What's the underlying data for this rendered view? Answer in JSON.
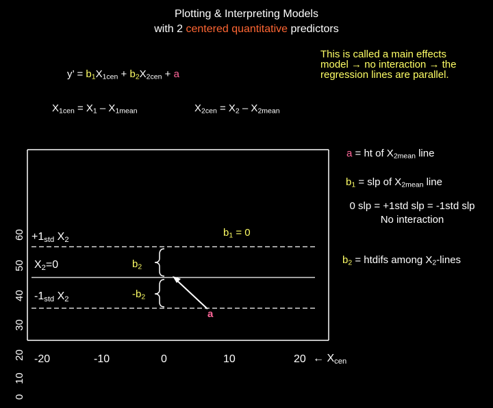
{
  "title": {
    "line1": "Plotting & Interpreting Models",
    "line2_pre": "with 2 ",
    "line2_hl": "centered quantitative",
    "line2_post": " predictors"
  },
  "note": {
    "line1": "This is called a main effects",
    "line2_pre": "model ",
    "line2_mid": " no interaction ",
    "line2_post": " the",
    "line3": "regression lines are parallel.",
    "arrow": "→"
  },
  "equation": {
    "lhs": "y’ = ",
    "b1": "b",
    "b1_sub": "1",
    "x1": "X",
    "x1_sub": "1cen",
    "plus1": " + ",
    "b2": "b",
    "b2_sub": "2",
    "x2": "X",
    "x2_sub": "2cen",
    "plus2": " + ",
    "a": "a"
  },
  "def1": {
    "x": "X",
    "sub_cen": "1cen",
    "eq": " = X",
    "sub1": "1",
    "minus": " – X",
    "sub_mean": "1mean"
  },
  "def2": {
    "x": "X",
    "sub_cen": "2cen",
    "eq": " = X",
    "sub1": "2",
    "minus": " – X",
    "sub_mean": "2mean"
  },
  "y_axis": {
    "ticks": [
      "0",
      "10",
      "20",
      "30",
      "40",
      "50",
      "60"
    ]
  },
  "x_axis": {
    "ticks": [
      "-20",
      "-10",
      "0",
      "10",
      "20"
    ],
    "arrow": "←",
    "label": "X",
    "label_sub": "cen"
  },
  "lines": {
    "plus": {
      "pre": "+1",
      "sub": "std",
      "post": " X",
      "post_sub": "2"
    },
    "mean": {
      "pre": "X",
      "sub": "2",
      "post": "=0"
    },
    "minus": {
      "pre": "-1",
      "sub": "std",
      "post": " X",
      "post_sub": "2"
    }
  },
  "brace_labels": {
    "b2": "b",
    "b2_sub": "2",
    "neg_b2": "-b",
    "neg_b2_sub": "2"
  },
  "a_label": "a",
  "b1_zero": {
    "b": "b",
    "sub": "1",
    "eq": " = 0"
  },
  "right_notes": {
    "a_def": {
      "a": "a",
      "text": " = ht of X",
      "sub": "2mean",
      "post": " line"
    },
    "b1_def": {
      "b": "b",
      "sub": "1",
      "text": " = slp of X",
      "sub2": "2mean",
      "post": " line"
    },
    "slp_line1": "0 slp = +1std slp = -1std slp",
    "slp_line2": "No interaction",
    "b2_def": {
      "b": "b",
      "sub": "2",
      "text": " = htdifs among X",
      "sub2": "2",
      "post": "-lines"
    }
  },
  "colors": {
    "yellow": "#ffff66",
    "orange": "#ff6633",
    "pink": "#ff6699",
    "background": "#000000",
    "foreground": "#ffffff"
  }
}
